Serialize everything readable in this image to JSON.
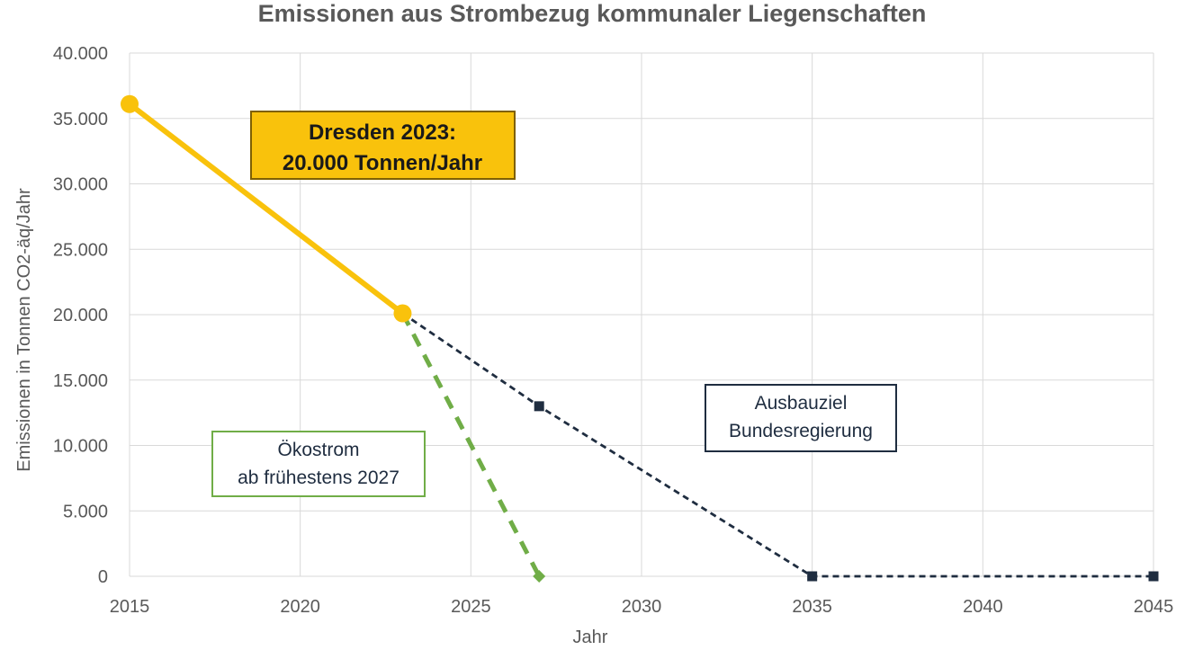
{
  "chart_data": {
    "type": "line",
    "title": "Emissionen aus Strombezug kommunaler Liegenschaften",
    "xlabel": "Jahr",
    "ylabel": "Emissionen in Tonnen CO2-äq/Jahr",
    "xlim": [
      2015,
      2045
    ],
    "ylim": [
      0,
      40000
    ],
    "x_ticks": [
      2015,
      2020,
      2025,
      2030,
      2035,
      2040,
      2045
    ],
    "x_tick_labels": [
      "2015",
      "2020",
      "2025",
      "2030",
      "2035",
      "2040",
      "2045"
    ],
    "y_ticks": [
      0,
      5000,
      10000,
      15000,
      20000,
      25000,
      30000,
      35000,
      40000
    ],
    "y_tick_labels": [
      "0",
      "5.000",
      "10.000",
      "15.000",
      "20.000",
      "25.000",
      "30.000",
      "35.000",
      "40.000"
    ],
    "grid": true,
    "legend": "none",
    "series": [
      {
        "x": [
          2015,
          2023
        ],
        "values": [
          36100,
          20100
        ],
        "color": "#F9C20C",
        "style": "solid",
        "marker": "circle"
      },
      {
        "x": [
          2023,
          2027
        ],
        "values": [
          20100,
          0
        ],
        "color": "#70AD47",
        "style": "dashed",
        "marker": "diamond"
      },
      {
        "x": [
          2023,
          2027,
          2035,
          2045
        ],
        "values": [
          20100,
          13000,
          0,
          0
        ],
        "color": "#1F2D40",
        "style": "dashed",
        "marker": "square"
      }
    ],
    "annotations": [
      {
        "lines": [
          "Dresden 2023:",
          "20.000 Tonnen/Jahr"
        ],
        "fill": "#F9C20C",
        "border": "#7F6000",
        "text_color": "#1a1a1a",
        "bold": true
      },
      {
        "lines": [
          "Ökostrom",
          "ab frühestens 2027"
        ],
        "fill": "#ffffff",
        "border": "#70AD47",
        "text_color": "#1F2D40",
        "bold": false
      },
      {
        "lines": [
          "Ausbauziel",
          "Bundesregierung"
        ],
        "fill": "#ffffff",
        "border": "#1F2D40",
        "text_color": "#1F2D40",
        "bold": false
      }
    ]
  }
}
